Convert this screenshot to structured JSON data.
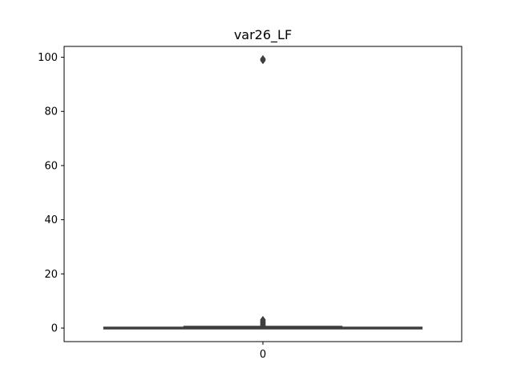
{
  "chart_data": {
    "type": "box",
    "title": "var26_LF",
    "xlabel": "",
    "ylabel": "",
    "categories": [
      "0"
    ],
    "ylim": [
      -5,
      104
    ],
    "yticks": [
      0,
      20,
      40,
      60,
      80,
      100
    ],
    "grid": false,
    "series": [
      {
        "category": "0",
        "min": 0,
        "q1": 0,
        "median": 0,
        "q3": 0.3,
        "max": 0.6,
        "outliers": [
          0.8,
          1.0,
          1.2,
          1.5,
          1.8,
          2.0,
          2.3,
          2.6,
          2.9,
          3.1,
          98.8,
          99.1,
          99.4
        ],
        "color": "#4c72b0"
      }
    ]
  }
}
